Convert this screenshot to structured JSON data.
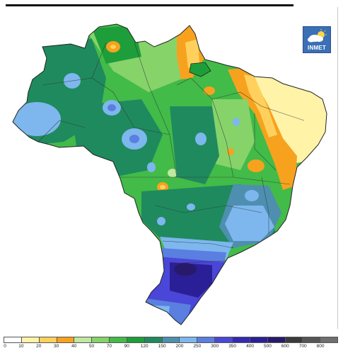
{
  "logo": {
    "text": "INMET",
    "icon": "cloud-sun-icon"
  },
  "legend": {
    "ticks": [
      "0",
      "10",
      "20",
      "30",
      "40",
      "50",
      "70",
      "90",
      "120",
      "150",
      "200",
      "250",
      "300",
      "350",
      "400",
      "500",
      "600",
      "700",
      "800"
    ],
    "colors": [
      "#ffffff",
      "#fff3a8",
      "#ffd15c",
      "#f7a21e",
      "#bfe8a0",
      "#86d36a",
      "#42bb48",
      "#1e9e3a",
      "#1f8a5e",
      "#4e8fb0",
      "#7db7ee",
      "#5a7fe0",
      "#4a46d8",
      "#3329b4",
      "#2a1f96",
      "#28196b",
      "#3a3a3a",
      "#555555",
      "#6f6f6f"
    ]
  },
  "map": {
    "country": "Brazil",
    "background_color": "#ffffff",
    "precipitation_zones": [
      "north-amazon-green",
      "northwest-teal",
      "amapa-orange",
      "northeast-yellow",
      "east-orange-band",
      "southeast-blue",
      "south-purple"
    ]
  }
}
